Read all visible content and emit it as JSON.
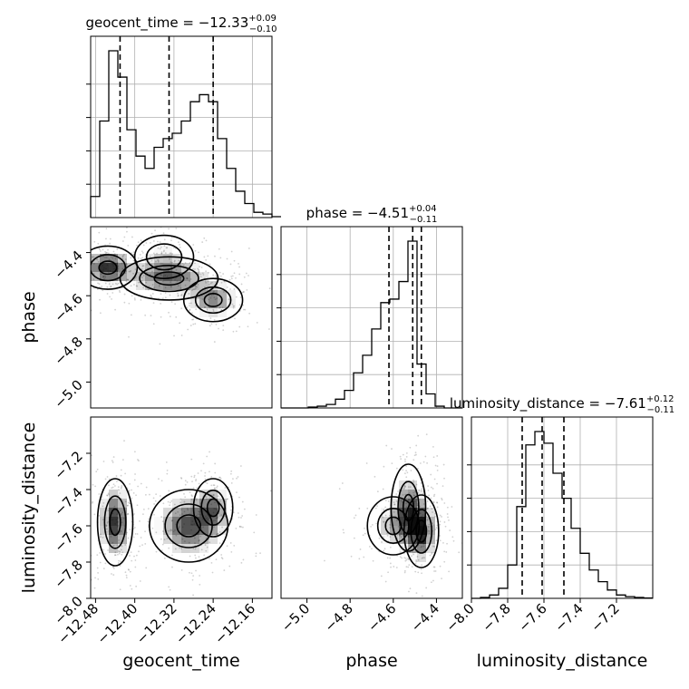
{
  "chart_data": {
    "type": "corner",
    "parameters": [
      "geocent_time",
      "phase",
      "luminosity_distance"
    ],
    "titles": [
      {
        "param": "geocent_time",
        "label": "geocent_time = −12.33",
        "median": -12.33,
        "plus": "+0.09",
        "minus": "−0.10"
      },
      {
        "param": "phase",
        "label": "phase = −4.51",
        "median": -4.51,
        "plus": "+0.04",
        "minus": "−0.11"
      },
      {
        "param": "luminosity_distance",
        "label": "luminosity_distance = −7.61",
        "median": -7.61,
        "plus": "+0.12",
        "minus": "−0.11"
      }
    ],
    "ranges": {
      "geocent_time": [
        -12.49,
        -12.12
      ],
      "phase": [
        -5.12,
        -4.28
      ],
      "luminosity_distance": [
        -8.0,
        -7.0
      ]
    },
    "axis_ticks": {
      "geocent_time": {
        "values": [
          -12.48,
          -12.4,
          -12.32,
          -12.24,
          -12.16
        ],
        "labels": [
          "−12.48",
          "−12.40",
          "−12.32",
          "−12.24",
          "−12.16"
        ]
      },
      "phase": {
        "values": [
          -5.0,
          -4.8,
          -4.6,
          -4.4
        ],
        "labels": [
          "−5.0",
          "−4.8",
          "−4.6",
          "−4.4"
        ]
      },
      "luminosity_distance": {
        "values": [
          -8.0,
          -7.8,
          -7.6,
          -7.4,
          -7.2
        ],
        "labels": [
          "−8.0",
          "−7.8",
          "−7.6",
          "−7.4",
          "−7.2"
        ]
      }
    },
    "diag_ticks_frac": [
      0.2,
      0.4,
      0.6,
      0.8
    ],
    "histograms": {
      "geocent_time": {
        "edges_start": -12.49,
        "bin_width": 0.0185,
        "counts": [
          0.12,
          0.55,
          0.95,
          0.8,
          0.5,
          0.35,
          0.28,
          0.4,
          0.45,
          0.48,
          0.55,
          0.66,
          0.7,
          0.66,
          0.45,
          0.28,
          0.15,
          0.08,
          0.03,
          0.02,
          0.005
        ]
      },
      "phase": {
        "edges_start": -5.12,
        "bin_width": 0.042,
        "counts": [
          0,
          0,
          0,
          0.005,
          0.01,
          0.02,
          0.05,
          0.1,
          0.2,
          0.3,
          0.45,
          0.6,
          0.62,
          0.72,
          0.95,
          0.25,
          0.08,
          0.01,
          0,
          0
        ]
      },
      "luminosity_distance": {
        "edges_start": -8.0,
        "bin_width": 0.05,
        "counts": [
          0,
          0.005,
          0.02,
          0.06,
          0.2,
          0.55,
          0.92,
          1.0,
          0.93,
          0.75,
          0.6,
          0.42,
          0.27,
          0.17,
          0.1,
          0.05,
          0.02,
          0.01,
          0.005,
          0.002
        ]
      }
    },
    "quantile_lines": {
      "geocent_time": [
        -12.43,
        -12.33,
        -12.24
      ],
      "phase": [
        -4.62,
        -4.51,
        -4.47
      ],
      "luminosity_distance": [
        -7.72,
        -7.61,
        -7.49
      ]
    },
    "density_blobs": {
      "phase_vs_geocent_time": [
        {
          "x": -12.455,
          "y": -4.47,
          "sx": 0.03,
          "sy": 0.05,
          "w": 1.0
        },
        {
          "x": -12.33,
          "y": -4.52,
          "sx": 0.05,
          "sy": 0.05,
          "w": 0.8
        },
        {
          "x": -12.24,
          "y": -4.62,
          "sx": 0.03,
          "sy": 0.05,
          "w": 0.7
        },
        {
          "x": -12.34,
          "y": -4.42,
          "sx": 0.03,
          "sy": 0.05,
          "w": 0.35
        }
      ],
      "luminosity_distance_vs_geocent_time": [
        {
          "x": -12.44,
          "y": -7.58,
          "sx": 0.018,
          "sy": 0.12,
          "w": 1.0
        },
        {
          "x": -12.29,
          "y": -7.6,
          "sx": 0.04,
          "sy": 0.1,
          "w": 0.9
        },
        {
          "x": -12.24,
          "y": -7.5,
          "sx": 0.02,
          "sy": 0.08,
          "w": 0.6
        }
      ],
      "luminosity_distance_vs_phase": [
        {
          "x": -4.47,
          "y": -7.63,
          "sx": 0.04,
          "sy": 0.1,
          "w": 1.0
        },
        {
          "x": -4.53,
          "y": -7.5,
          "sx": 0.04,
          "sy": 0.12,
          "w": 0.7
        },
        {
          "x": -4.6,
          "y": -7.6,
          "sx": 0.06,
          "sy": 0.08,
          "w": 0.5
        }
      ]
    },
    "grid": true,
    "colors": {
      "line": "#000000",
      "grid": "#b0b0b0",
      "density": "#000000"
    }
  }
}
